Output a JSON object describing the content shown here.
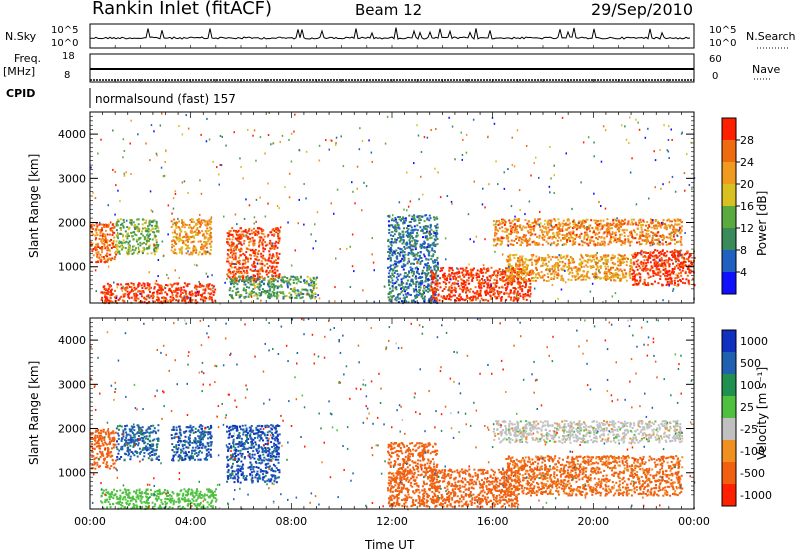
{
  "header": {
    "station": "Rankin Inlet (fitACF)",
    "beam": "Beam 12",
    "date": "29/Sep/2010"
  },
  "left_labels": {
    "nsky": "N.Sky",
    "nsky_top": "10^5",
    "nsky_bottom": "10^0",
    "freq": "Freq.",
    "freq_unit": "[MHz]",
    "freq_top": "18",
    "freq_bottom": "8",
    "cpid": "CPID"
  },
  "right_labels": {
    "nsearch": "N.Search",
    "nsearch_top": "10^5",
    "nsearch_bottom": "10^0",
    "nave": "Nave",
    "nave_top": "60",
    "nave_bottom": "0"
  },
  "cpid_text": "normalsound (fast) 157",
  "colors": {
    "power_scale": [
      "#1010ff",
      "#2060c0",
      "#3a8a5a",
      "#5aaa40",
      "#d8c020",
      "#f09a20",
      "#f06a10",
      "#ff2000"
    ],
    "velocity_scale": [
      "#1030c0",
      "#2060b0",
      "#209050",
      "#50c040",
      "#c0c0c0",
      "#f09020",
      "#f06010",
      "#ff2000"
    ]
  },
  "chart_data": [
    {
      "type": "heatmap",
      "name": "power",
      "xlabel": "",
      "ylabel": "Slant Range [km]",
      "xlim": [
        "00:00",
        "24:00"
      ],
      "ylim": [
        180,
        4500
      ],
      "yticks": [
        1000,
        2000,
        3000,
        4000
      ],
      "colorbar": {
        "label": "Power [dB]",
        "ticks": [
          4,
          8,
          12,
          16,
          20,
          24,
          28
        ],
        "range": [
          0,
          32
        ]
      },
      "echo_regions": [
        {
          "t_start": 0.0,
          "t_end": 1.0,
          "r_start": 1100,
          "r_end": 2000,
          "value": 26
        },
        {
          "t_start": 1.0,
          "t_end": 2.7,
          "r_start": 1300,
          "r_end": 2100,
          "value": 14
        },
        {
          "t_start": 3.2,
          "t_end": 4.8,
          "r_start": 1300,
          "r_end": 2100,
          "value": 22
        },
        {
          "t_start": 5.4,
          "t_end": 7.5,
          "r_start": 700,
          "r_end": 1900,
          "value": 28
        },
        {
          "t_start": 0.4,
          "t_end": 5.0,
          "r_start": 200,
          "r_end": 650,
          "value": 30
        },
        {
          "t_start": 5.5,
          "t_end": 9.0,
          "r_start": 300,
          "r_end": 800,
          "value": 12
        },
        {
          "t_start": 11.8,
          "t_end": 13.8,
          "r_start": 200,
          "r_end": 2200,
          "value": 8
        },
        {
          "t_start": 13.5,
          "t_end": 17.5,
          "r_start": 250,
          "r_end": 1000,
          "value": 30
        },
        {
          "t_start": 16.0,
          "t_end": 23.5,
          "r_start": 1500,
          "r_end": 2100,
          "value": 24
        },
        {
          "t_start": 16.5,
          "t_end": 21.5,
          "r_start": 700,
          "r_end": 1300,
          "value": 22
        },
        {
          "t_start": 21.5,
          "t_end": 24.0,
          "r_start": 600,
          "r_end": 1400,
          "value": 30
        }
      ]
    },
    {
      "type": "heatmap",
      "name": "velocity",
      "xlabel": "Time UT",
      "ylabel": "Slant Range [km]",
      "xlim": [
        "00:00",
        "24:00"
      ],
      "xticks": [
        "00:00",
        "04:00",
        "08:00",
        "12:00",
        "16:00",
        "20:00",
        "00:00"
      ],
      "ylim": [
        180,
        4500
      ],
      "yticks": [
        1000,
        2000,
        3000,
        4000
      ],
      "colorbar": {
        "label": "Velocity [m s⁻¹]",
        "ticks": [
          1000,
          500,
          100,
          25,
          -25,
          -100,
          -500,
          -1000
        ]
      },
      "echo_regions": [
        {
          "t_start": 0.0,
          "t_end": 1.0,
          "r_start": 1100,
          "r_end": 2000,
          "value": -250
        },
        {
          "t_start": 1.0,
          "t_end": 2.7,
          "r_start": 1300,
          "r_end": 2100,
          "value": 700
        },
        {
          "t_start": 3.2,
          "t_end": 4.8,
          "r_start": 1300,
          "r_end": 2100,
          "value": 800
        },
        {
          "t_start": 5.4,
          "t_end": 7.5,
          "r_start": 800,
          "r_end": 2100,
          "value": 900
        },
        {
          "t_start": 0.4,
          "t_end": 5.0,
          "r_start": 200,
          "r_end": 650,
          "value": 60
        },
        {
          "t_start": 11.8,
          "t_end": 13.8,
          "r_start": 250,
          "r_end": 1700,
          "value": -200
        },
        {
          "t_start": 13.5,
          "t_end": 17.0,
          "r_start": 250,
          "r_end": 1100,
          "value": -300
        },
        {
          "t_start": 16.0,
          "t_end": 23.5,
          "r_start": 1700,
          "r_end": 2200,
          "value": 0
        },
        {
          "t_start": 16.5,
          "t_end": 23.5,
          "r_start": 500,
          "r_end": 1400,
          "value": -150
        }
      ]
    }
  ]
}
